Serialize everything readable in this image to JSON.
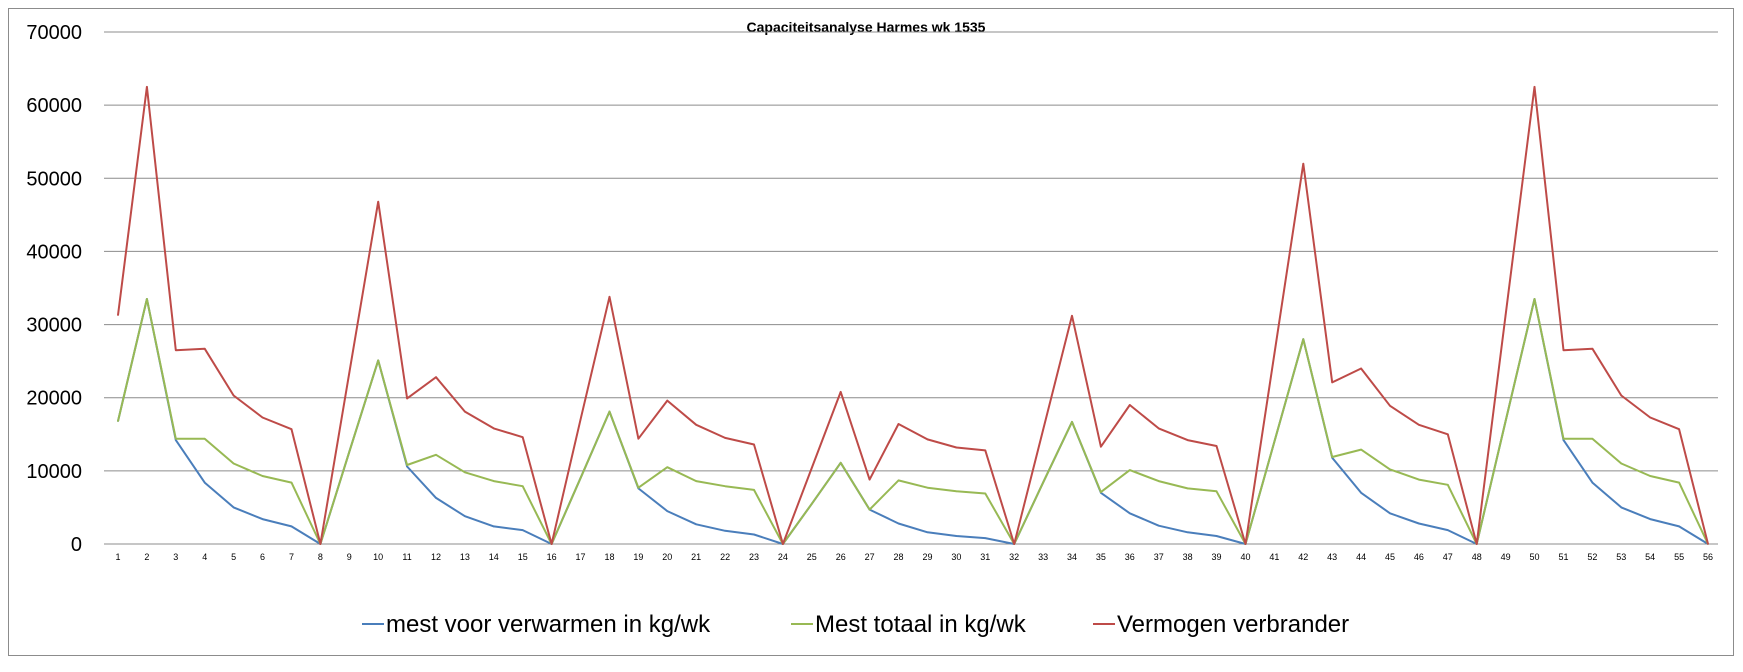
{
  "chart_data": {
    "type": "line",
    "title": "Capaciteitsanalyse Harmes wk 1535",
    "xlabel": "",
    "ylabel": "",
    "ylim": [
      0,
      70000
    ],
    "yticks": [
      "0",
      "10000",
      "20000",
      "30000",
      "40000",
      "50000",
      "60000",
      "70000"
    ],
    "grid": true,
    "legend_position": "bottom",
    "x": [
      "1",
      "2",
      "3",
      "4",
      "5",
      "6",
      "7",
      "8",
      "9",
      "10",
      "11",
      "12",
      "13",
      "14",
      "15",
      "16",
      "17",
      "18",
      "19",
      "20",
      "21",
      "22",
      "23",
      "24",
      "25",
      "26",
      "27",
      "28",
      "29",
      "30",
      "31",
      "32",
      "33",
      "34",
      "35",
      "36",
      "37",
      "38",
      "39",
      "40",
      "41",
      "42",
      "43",
      "44",
      "45",
      "46",
      "47",
      "48",
      "49",
      "50",
      "51",
      "52",
      "53",
      "54",
      "55",
      "56"
    ],
    "series": [
      {
        "name": "mest voor verwarmen in kg/wk",
        "color": "#4a7ebb",
        "values": [
          16800,
          33500,
          14200,
          8400,
          5000,
          3400,
          2400,
          0,
          12600,
          25100,
          10600,
          6300,
          3800,
          2400,
          1900,
          0,
          9000,
          18100,
          7600,
          4500,
          2700,
          1800,
          1300,
          0,
          5500,
          11100,
          4700,
          2800,
          1600,
          1100,
          800,
          0,
          8400,
          16700,
          7000,
          4200,
          2500,
          1600,
          1100,
          0,
          14000,
          28000,
          11800,
          7000,
          4200,
          2800,
          1900,
          0,
          16800,
          33500,
          14200,
          8400,
          5000,
          3400,
          2400,
          0
        ]
      },
      {
        "name": "Mest totaal in kg/wk",
        "color": "#98b954",
        "values": [
          16800,
          33500,
          14400,
          14400,
          11000,
          9300,
          8400,
          0,
          12600,
          25100,
          10800,
          12200,
          9800,
          8600,
          7900,
          0,
          9000,
          18100,
          7700,
          10500,
          8600,
          7900,
          7400,
          0,
          5500,
          11100,
          4700,
          8700,
          7700,
          7200,
          6900,
          0,
          8400,
          16700,
          7100,
          10100,
          8600,
          7600,
          7200,
          0,
          14000,
          28000,
          11900,
          12900,
          10200,
          8800,
          8100,
          0,
          16800,
          33500,
          14400,
          14400,
          11000,
          9300,
          8400,
          0
        ]
      },
      {
        "name": "Vermogen verbrander",
        "color": "#be4b48",
        "values": [
          31300,
          62500,
          26500,
          26700,
          20300,
          17300,
          15700,
          0,
          23400,
          46800,
          19900,
          22800,
          18100,
          15800,
          14600,
          0,
          17000,
          33800,
          14400,
          19600,
          16300,
          14500,
          13600,
          0,
          10400,
          20800,
          8800,
          16400,
          14300,
          13200,
          12800,
          0,
          15600,
          31200,
          13300,
          19000,
          15800,
          14200,
          13400,
          0,
          26000,
          52000,
          22100,
          24000,
          18900,
          16300,
          15000,
          0,
          31300,
          62500,
          26500,
          26700,
          20300,
          17300,
          15700,
          0
        ]
      }
    ]
  }
}
